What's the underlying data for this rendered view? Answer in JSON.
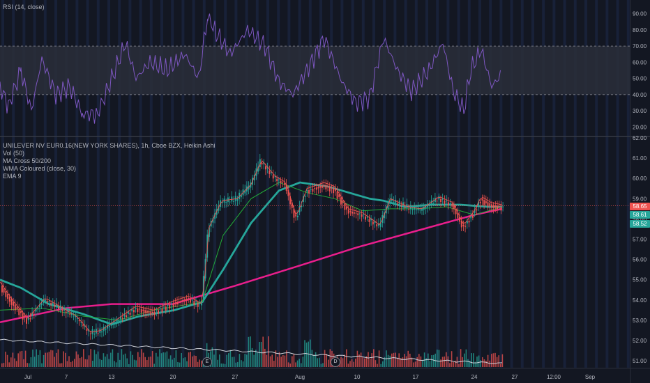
{
  "rsi_panel": {
    "title": "RSI (14, close)",
    "upper_band": 70,
    "lower_band": 40,
    "axis_ticks": [
      "90.00",
      "80.00",
      "70.00",
      "60.00",
      "50.00",
      "40.00",
      "30.00",
      "20.00"
    ]
  },
  "main_panel": {
    "symbol_line": "UNILEVER NV EUR0.16(NEW YORK SHARES), 1h, Cboe BZX, Heikin Ashi",
    "indicators": [
      "Vol (50)",
      "MA Cross 50/200",
      "WMA Coloured (close, 30)",
      "EMA 9"
    ],
    "price_ticks": [
      "62.00",
      "61.00",
      "60.00",
      "59.00",
      "58.00",
      "57.00",
      "56.00",
      "55.00",
      "54.00",
      "53.00",
      "52.00",
      "51.00"
    ],
    "price_tags": [
      {
        "text": "58.65",
        "color": "#ef5350"
      },
      {
        "text": "58.61",
        "color": "#26a69a"
      },
      {
        "text": "58.52",
        "color": "#26a69a"
      }
    ],
    "events": [
      {
        "label": "E"
      },
      {
        "label": "D"
      }
    ]
  },
  "time_axis": [
    "Jul",
    "7",
    "13",
    "20",
    "27",
    "Aug",
    "10",
    "17",
    "24",
    "27",
    "12:00",
    "Sep"
  ],
  "colors": {
    "background": "#131722",
    "up": "#26a69a",
    "down": "#ef5350",
    "rsi_line": "#7e57c2",
    "ma_slow": "#e91e8c",
    "wma": "#26a69a",
    "ma_fast": "#22ab3a",
    "ema": "#ef5350",
    "volume_ma": "#d1d4dc"
  },
  "chart_data": {
    "type": "candlestick",
    "chart_style": "Heikin Ashi",
    "x_dates": [
      "Jul 1",
      "Jul 7",
      "Jul 13",
      "Jul 20",
      "Jul 27",
      "Aug 3",
      "Aug 10",
      "Aug 17",
      "Aug 24",
      "Aug 26"
    ],
    "close": [
      53.2,
      53.5,
      52.8,
      53.9,
      60.6,
      59.5,
      58.0,
      58.7,
      57.8,
      58.6
    ],
    "ma200": [
      52.9,
      53.6,
      53.8,
      53.8,
      54.7,
      55.7,
      56.6,
      57.4,
      58.2,
      58.5
    ],
    "wma30": [
      55.0,
      53.4,
      52.9,
      53.4,
      57.0,
      59.7,
      59.0,
      58.7,
      58.7,
      58.6
    ],
    "rsi": [
      43,
      57,
      26,
      59,
      82,
      54,
      38,
      48,
      42,
      53
    ],
    "ylim": [
      50.8,
      62.0
    ],
    "rsi_ylim": [
      15,
      95
    ]
  }
}
